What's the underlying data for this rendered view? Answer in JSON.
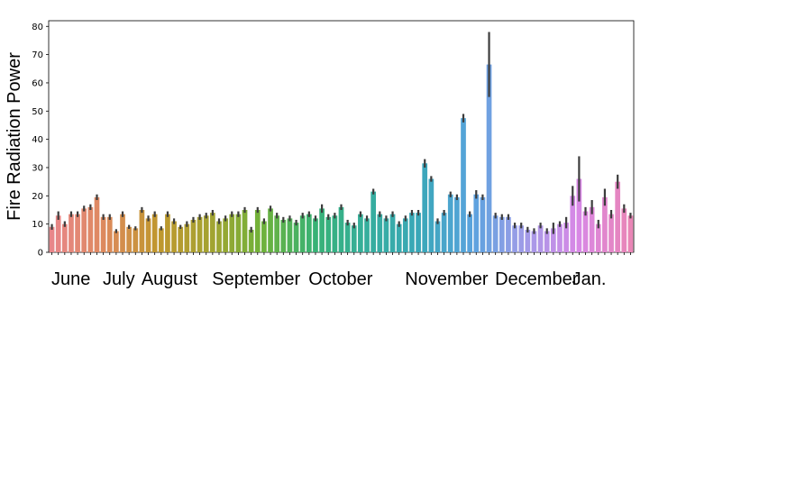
{
  "chart_data": {
    "type": "bar",
    "ylabel": "Fire Radiation Power",
    "xlabel": "",
    "ylim": [
      0,
      82
    ],
    "yticks": [
      0,
      10,
      20,
      30,
      40,
      50,
      60,
      70,
      80
    ],
    "grid": false,
    "legend": "none",
    "month_labels": [
      "June",
      "July",
      "August",
      "September",
      "October",
      "November",
      "December",
      "Jan."
    ],
    "values": [
      9,
      13,
      10,
      13.5,
      13.5,
      15.5,
      16,
      19.5,
      12.5,
      12.5,
      7.5,
      13.5,
      9,
      8.5,
      15,
      12,
      13.5,
      8.5,
      13.5,
      11,
      9,
      10,
      11.5,
      12.5,
      13,
      14,
      11,
      12,
      13.5,
      13.5,
      15,
      8,
      15,
      11,
      15.5,
      13,
      11.5,
      12,
      10.5,
      13,
      13.5,
      12,
      15.5,
      12.5,
      13,
      16,
      10.5,
      9.5,
      13.5,
      12,
      21.5,
      13.5,
      12,
      13.5,
      10,
      12,
      14,
      14,
      31.5,
      26,
      11,
      14,
      20.5,
      19.5,
      47.5,
      13.5,
      20.5,
      19.5,
      66.5,
      13,
      12.5,
      12.5,
      9.5,
      9.5,
      8,
      7.5,
      9.5,
      7.5,
      8.5,
      10,
      10.5,
      20,
      26,
      14.5,
      16,
      10,
      19.5,
      13.5,
      25,
      15.5,
      13
    ],
    "errors": [
      1,
      1.5,
      1,
      1,
      1,
      1,
      1,
      1,
      1,
      1,
      0.7,
      1,
      0.7,
      0.7,
      1,
      1,
      1,
      0.7,
      1,
      1,
      0.7,
      1,
      1,
      1,
      1,
      1,
      1,
      1,
      1,
      1,
      1,
      1,
      1,
      1,
      1,
      1,
      1,
      1,
      1,
      1,
      1,
      1,
      1.5,
      1,
      1,
      1,
      1,
      1,
      1,
      1,
      1,
      1,
      1,
      1,
      1,
      1,
      1,
      1,
      1.5,
      1,
      1,
      1,
      1,
      1,
      1.5,
      1,
      1.5,
      1,
      11.5,
      1,
      1,
      1,
      1,
      1,
      1,
      1,
      1,
      1,
      2,
      1,
      2,
      3.5,
      8,
      1.5,
      2.5,
      1.5,
      3,
      1.5,
      2.5,
      1.5,
      1
    ],
    "month_start_index": [
      0,
      8,
      14,
      25,
      40,
      55,
      69,
      81
    ],
    "palette": [
      "#e8868a",
      "#dd8a5d",
      "#c0972e",
      "#a4a332",
      "#6fb23a",
      "#38b276",
      "#36ae9d",
      "#3aa7b9",
      "#5aa3de",
      "#a29be8",
      "#d888e6",
      "#e986b6"
    ]
  }
}
